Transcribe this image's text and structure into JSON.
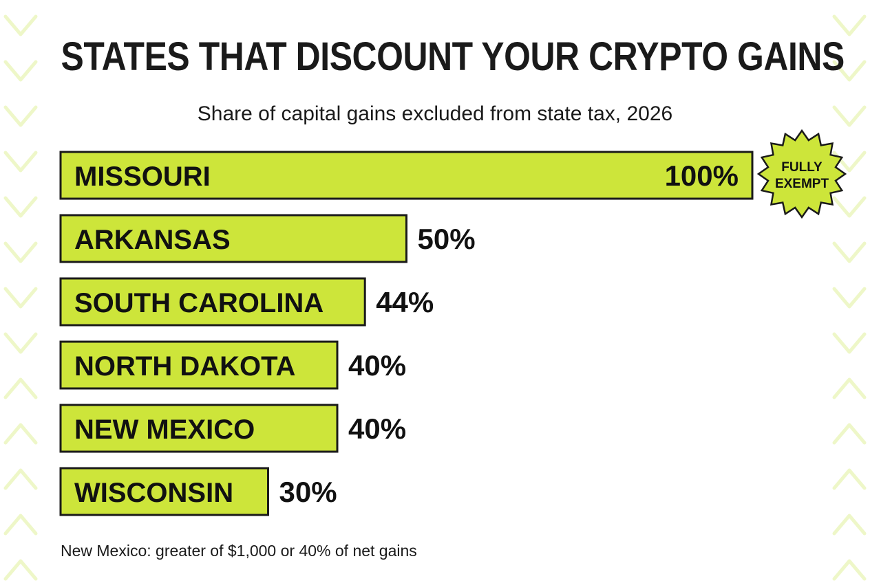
{
  "chart_data": {
    "type": "bar",
    "orientation": "horizontal",
    "title": "STATES THAT DISCOUNT YOUR CRYPTO GAINS",
    "subtitle": "Share of capital gains excluded from state tax, 2026",
    "categories": [
      "MISSOURI",
      "ARKANSAS",
      "SOUTH CAROLINA",
      "NORTH DAKOTA",
      "NEW MEXICO",
      "WISCONSIN"
    ],
    "values": [
      100,
      50,
      44,
      40,
      40,
      30
    ],
    "value_labels": [
      "100%",
      "50%",
      "44%",
      "40%",
      "40%",
      "30%"
    ],
    "xlim": [
      0,
      100
    ],
    "unit": "%",
    "grid": false,
    "legend": "none",
    "annotations": [
      {
        "category": "MISSOURI",
        "line1": "FULLY",
        "line2": "EXEMPT"
      }
    ],
    "footnote": "New Mexico: greater of $1,000 or 40% of net gains",
    "colors": {
      "bar_fill": "#cde53a",
      "bar_stroke": "#1a1a1a",
      "chevron": "#eef7c8",
      "text": "#111111"
    }
  }
}
